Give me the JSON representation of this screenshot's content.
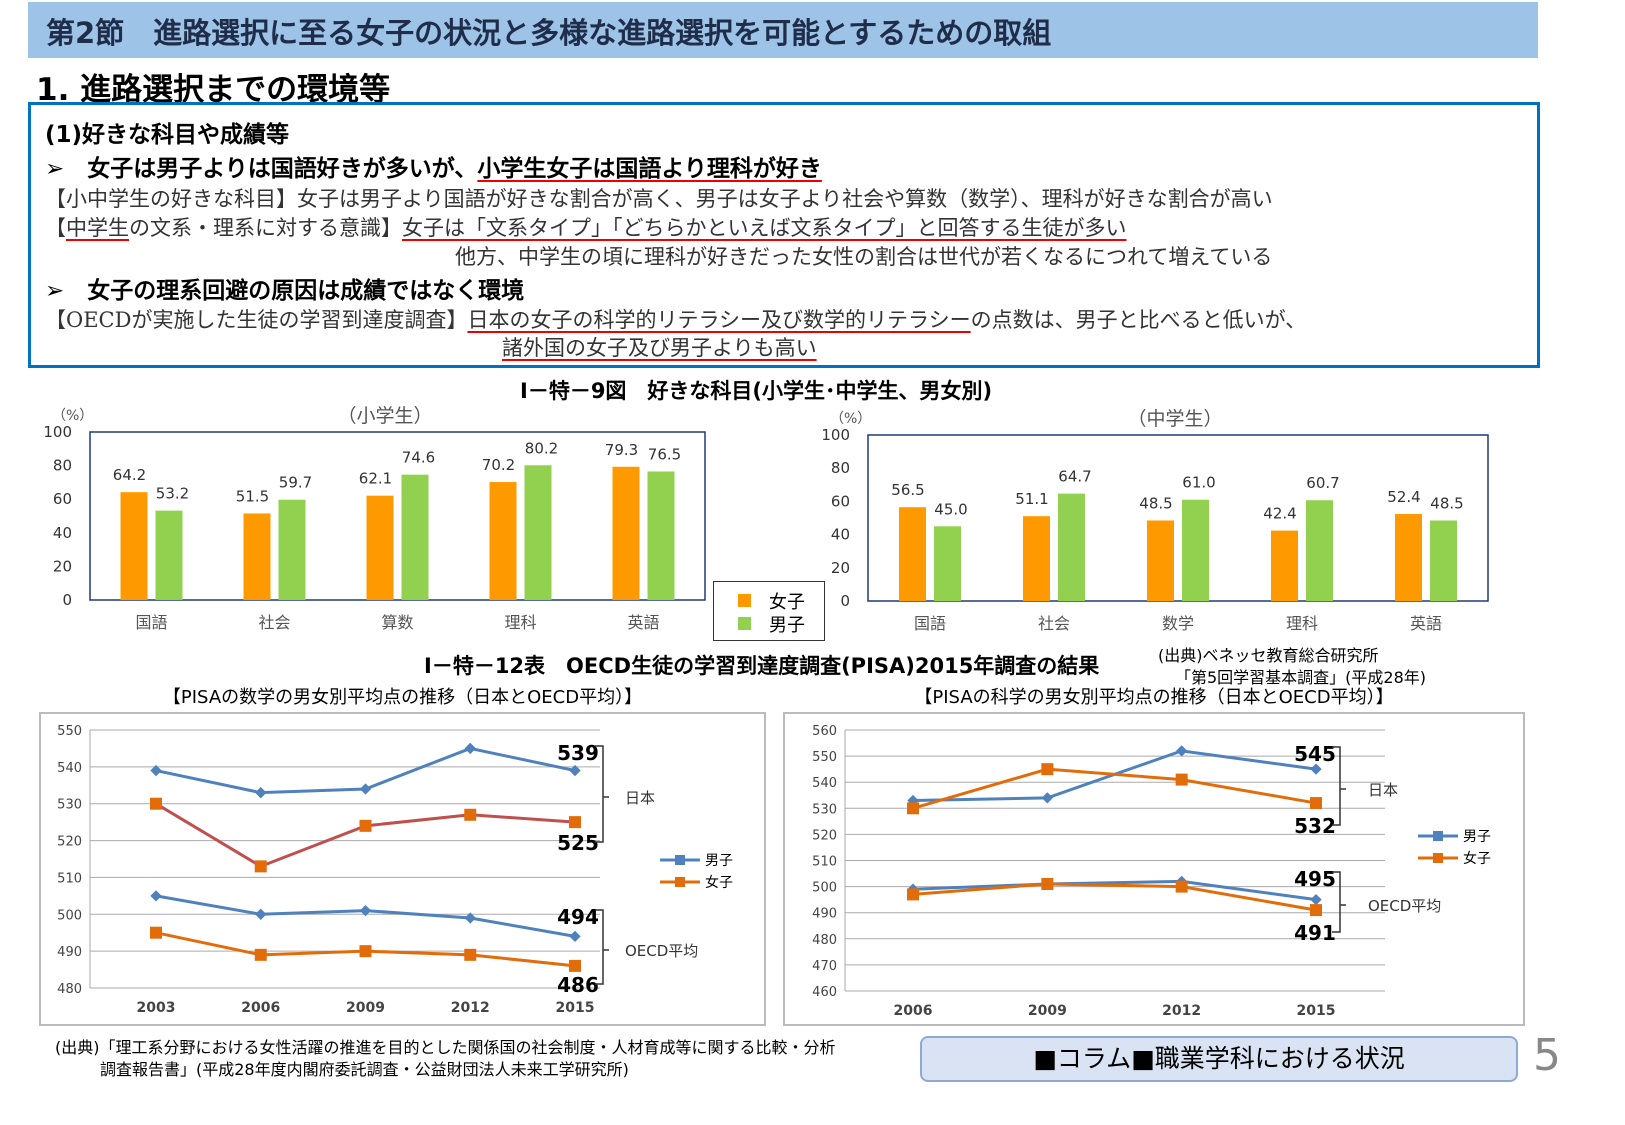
{
  "header": {
    "title": "第2節　進路選択に至る女子の状況と多様な進路選択を可能とするための取組"
  },
  "section": "1. 進路選択までの環境等",
  "box": {
    "sub": "(1)好きな科目や成績等",
    "b1_pre": "➢　女子は男子よりは国語好きが多いが、",
    "b1_u": "小学生女子は国語より理科が好き",
    "l1": "【小中学生の好きな科目】女子は男子より国語が好きな割合が高く、男子は女子より社会や算数（数学）、理科が好きな割合が高い",
    "l2_a": "【",
    "l2_u": "中学生",
    "l2_b": "の文系・理系に対する意識】",
    "l2_c": "女子は「文系タイプ」「どちらかといえば文系タイプ」と回答する生徒が多い",
    "l3": "他方、中学生の頃に理科が好きだった女性の割合は世代が若くなるにつれて増えている",
    "b2": "➢　女子の理系回避の原因は成績ではなく環境",
    "l4_a": "【OECDが実施した生徒の学習到達度調査】",
    "l4_u": "日本の女子の科学的リテラシー及び数学的リテラシー",
    "l4_b": "の点数は、男子と比べると低いが、",
    "l5": "諸外国の女子及び男子よりも高い"
  },
  "fig_title": "Ⅰ－特－9図　好きな科目(小学生･中学生、男女別)",
  "table_title": "Ⅰ－特－12表　OECD生徒の学習到達度調査(PISA)2015年調査の結果",
  "source1": [
    "(出典)ベネッセ教育総合研究所",
    "「第5回学習基本調査」(平成28年)"
  ],
  "source2": [
    "(出典)「理工系分野における女性活躍の推進を目的とした関係国の社会制度・人材育成等に関する比較・分析",
    "調査報告書」(平成28年度内閣府委託調査・公益財団法人未来工学研究所)"
  ],
  "column_button": "■コラム■職業学科における状況",
  "page_number": "5",
  "legend": {
    "female": "女子",
    "male": "男子"
  },
  "colors": {
    "female": "#ff9900",
    "male": "#92d050",
    "boys_line": "#4f81bd",
    "girls_line": "#e36c0a",
    "girls_line_jp_math": "#c0504d",
    "box": "#0070c0",
    "header": "#9dc3e6"
  },
  "chart_data": [
    {
      "type": "bar",
      "subtitle": "（小学生）",
      "yunit": "（%）",
      "ylim": [
        0,
        100
      ],
      "yticks": [
        0,
        20,
        40,
        60,
        80,
        100
      ],
      "categories": [
        "国語",
        "社会",
        "算数",
        "理科",
        "英語"
      ],
      "series": [
        {
          "name": "女子",
          "values": [
            64.2,
            51.5,
            62.1,
            70.2,
            79.3
          ]
        },
        {
          "name": "男子",
          "values": [
            53.2,
            59.7,
            74.6,
            80.2,
            76.5
          ]
        }
      ]
    },
    {
      "type": "bar",
      "subtitle": "（中学生）",
      "yunit": "（%）",
      "ylim": [
        0,
        100
      ],
      "yticks": [
        0,
        20,
        40,
        60,
        80,
        100
      ],
      "categories": [
        "国語",
        "社会",
        "数学",
        "理科",
        "英語"
      ],
      "series": [
        {
          "name": "女子",
          "values": [
            56.5,
            51.1,
            48.5,
            42.4,
            52.4
          ]
        },
        {
          "name": "男子",
          "values": [
            45.0,
            64.7,
            61.0,
            60.7,
            48.5
          ]
        }
      ]
    },
    {
      "type": "line",
      "title": "【PISAの数学の男女別平均点の推移（日本とOECD平均）】",
      "ylim": [
        480,
        550
      ],
      "yticks": [
        480,
        490,
        500,
        510,
        520,
        530,
        540,
        550
      ],
      "x": [
        "2003",
        "2006",
        "2009",
        "2012",
        "2015"
      ],
      "series": [
        {
          "name": "男子",
          "group": "日本",
          "values": [
            539,
            533,
            534,
            545,
            539
          ]
        },
        {
          "name": "女子",
          "group": "日本",
          "values": [
            530,
            513,
            524,
            527,
            525
          ]
        },
        {
          "name": "男子",
          "group": "OECD平均",
          "values": [
            505,
            500,
            501,
            499,
            494
          ]
        },
        {
          "name": "女子",
          "group": "OECD平均",
          "values": [
            495,
            489,
            490,
            489,
            486
          ]
        }
      ],
      "annotations": {
        "日本": [
          "539",
          "525"
        ],
        "OECD平均": [
          "494",
          "486"
        ]
      },
      "groups": [
        "日本",
        "OECD平均"
      ],
      "legend": [
        "男子",
        "女子"
      ]
    },
    {
      "type": "line",
      "title": "【PISAの科学の男女別平均点の推移（日本とOECD平均）】",
      "ylim": [
        460,
        560
      ],
      "yticks": [
        460,
        470,
        480,
        490,
        500,
        510,
        520,
        530,
        540,
        550,
        560
      ],
      "x": [
        "2006",
        "2009",
        "2012",
        "2015"
      ],
      "series": [
        {
          "name": "男子",
          "group": "日本",
          "values": [
            533,
            534,
            552,
            545
          ]
        },
        {
          "name": "女子",
          "group": "日本",
          "values": [
            530,
            545,
            541,
            532
          ]
        },
        {
          "name": "男子",
          "group": "OECD平均",
          "values": [
            499,
            501,
            502,
            495
          ]
        },
        {
          "name": "女子",
          "group": "OECD平均",
          "values": [
            497,
            501,
            500,
            491
          ]
        }
      ],
      "annotations": {
        "日本": [
          "545",
          "532"
        ],
        "OECD平均": [
          "495",
          "491"
        ]
      },
      "groups": [
        "日本",
        "OECD平均"
      ],
      "legend": [
        "男子",
        "女子"
      ]
    }
  ]
}
